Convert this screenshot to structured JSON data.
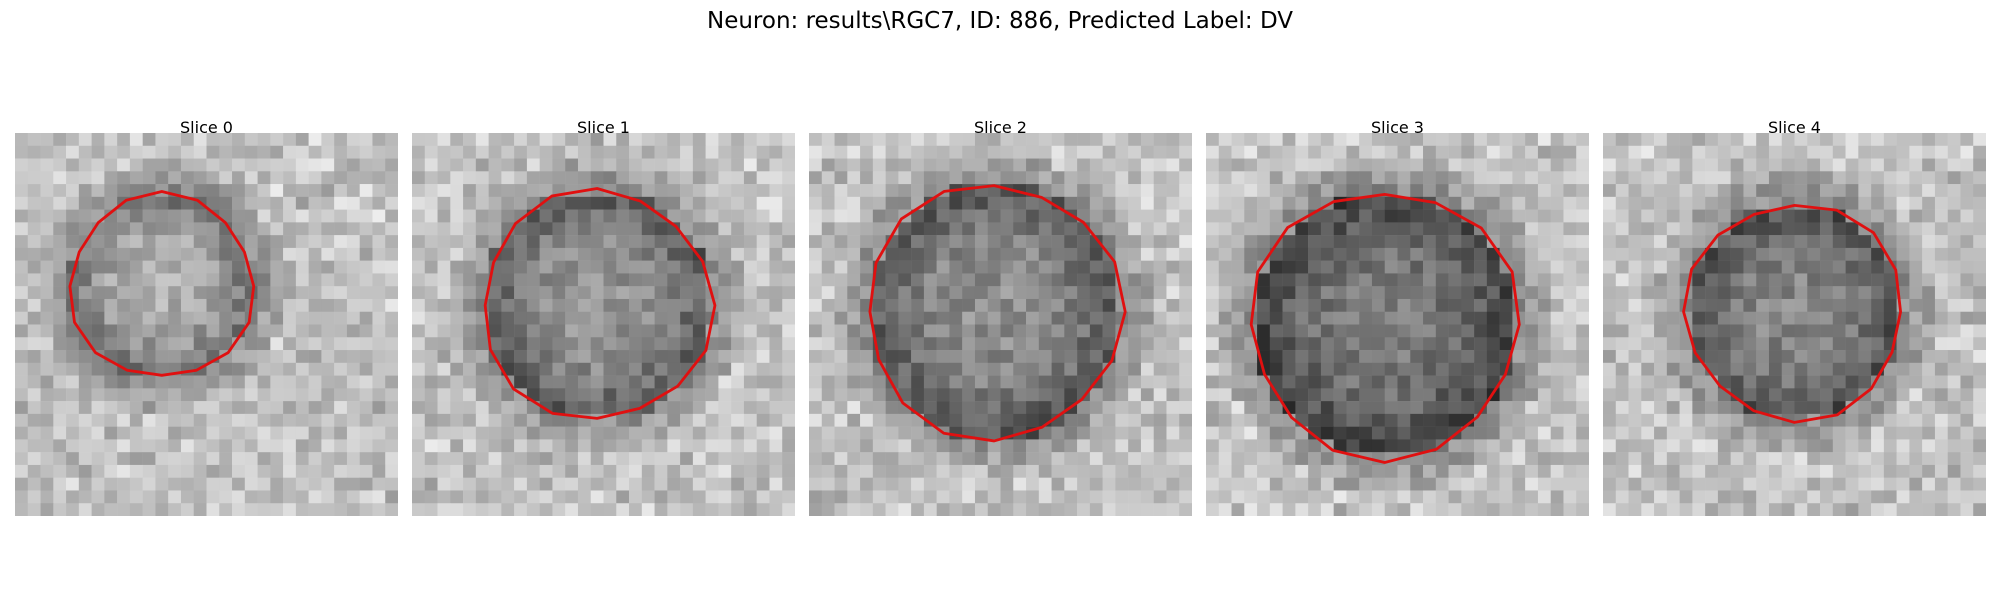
{
  "figure": {
    "title": "Neuron: results\\RGC7, ID: 886, Predicted Label: DV"
  },
  "panels": [
    {
      "title": "Slice 0"
    },
    {
      "title": "Slice 1"
    },
    {
      "title": "Slice 2"
    },
    {
      "title": "Slice 3"
    },
    {
      "title": "Slice 4"
    }
  ],
  "colors": {
    "contour": "#e01010",
    "background": "#ffffff"
  }
}
